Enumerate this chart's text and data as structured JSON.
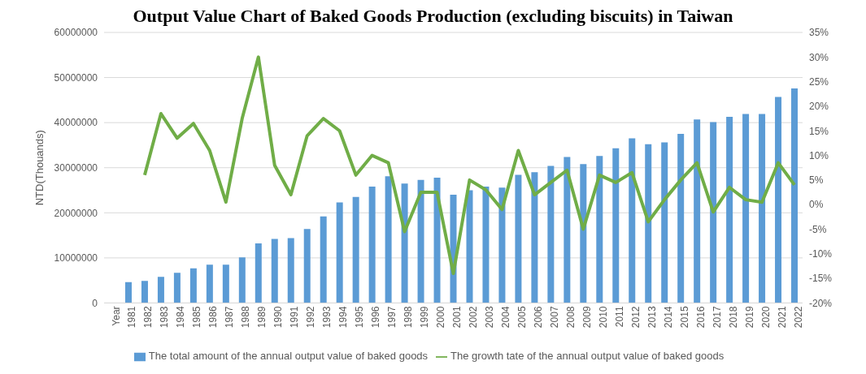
{
  "chart_data": {
    "type": "bar",
    "title": "Output Value Chart of Baked Goods Production (excluding biscuits) in Taiwan",
    "ylabel": "NTD(Thouands)",
    "categories": [
      "Year",
      "1981",
      "1982",
      "1983",
      "1984",
      "1985",
      "1986",
      "1987",
      "1988",
      "1989",
      "1990",
      "1991",
      "1992",
      "1993",
      "1994",
      "1995",
      "1996",
      "1997",
      "1998",
      "1999",
      "2000",
      "2001",
      "2002",
      "2003",
      "2004",
      "2005",
      "2006",
      "2007",
      "2008",
      "2009",
      "2010",
      "2011",
      "2012",
      "2013",
      "2014",
      "2015",
      "2016",
      "2017",
      "2018",
      "2019",
      "2020",
      "2021",
      "2022"
    ],
    "series": [
      {
        "name": "The total amount of the annual output value of baked goods",
        "color": "#5b9bd5",
        "values": [
          null,
          4600000,
          4900000,
          5800000,
          6700000,
          7700000,
          8500000,
          8500000,
          10100000,
          13200000,
          14200000,
          14400000,
          16400000,
          19200000,
          22300000,
          23500000,
          25800000,
          28100000,
          26500000,
          27300000,
          27800000,
          24000000,
          25000000,
          25800000,
          25600000,
          28400000,
          29000000,
          30400000,
          32400000,
          30800000,
          32600000,
          34300000,
          36500000,
          35200000,
          35600000,
          37500000,
          40700000,
          40100000,
          41300000,
          41900000,
          41900000,
          45700000,
          47600000
        ]
      },
      {
        "name": "The growth tate of the annual output value of baked goods",
        "type": "line",
        "axis": "y2",
        "color": "#70ad47",
        "values": [
          null,
          null,
          6,
          18.5,
          13.5,
          16.5,
          11,
          0.5,
          17.5,
          30,
          8,
          2,
          14,
          17.5,
          15,
          6,
          10,
          8.5,
          -5.5,
          2.5,
          2.5,
          -14,
          5,
          3,
          -1,
          11,
          2,
          4.5,
          7,
          -5,
          6,
          4.5,
          6.5,
          -3.5,
          1,
          5,
          8.5,
          -1.5,
          3.5,
          1,
          0.5,
          8.5,
          4
        ]
      }
    ],
    "ylim": [
      0,
      60000000
    ],
    "yticks": [
      0,
      10000000,
      20000000,
      30000000,
      40000000,
      50000000,
      60000000
    ],
    "y2lim": [
      -20,
      35
    ],
    "y2ticks": [
      {
        "value": -20,
        "label": "-20%"
      },
      {
        "value": -15,
        "label": "-15%"
      },
      {
        "value": -10,
        "label": "-10%"
      },
      {
        "value": -5,
        "label": "-5%"
      },
      {
        "value": 0,
        "label": "0%"
      },
      {
        "value": 5,
        "label": "5%"
      },
      {
        "value": 10,
        "label": "10%"
      },
      {
        "value": 15,
        "label": "15%"
      },
      {
        "value": 20,
        "label": "20%"
      },
      {
        "value": 25,
        "label": "25%"
      },
      {
        "value": 30,
        "label": "30%"
      },
      {
        "value": 35,
        "label": "35%"
      }
    ],
    "grid": "y",
    "legend": "bottom",
    "marker": "none",
    "line_style": "solid"
  }
}
